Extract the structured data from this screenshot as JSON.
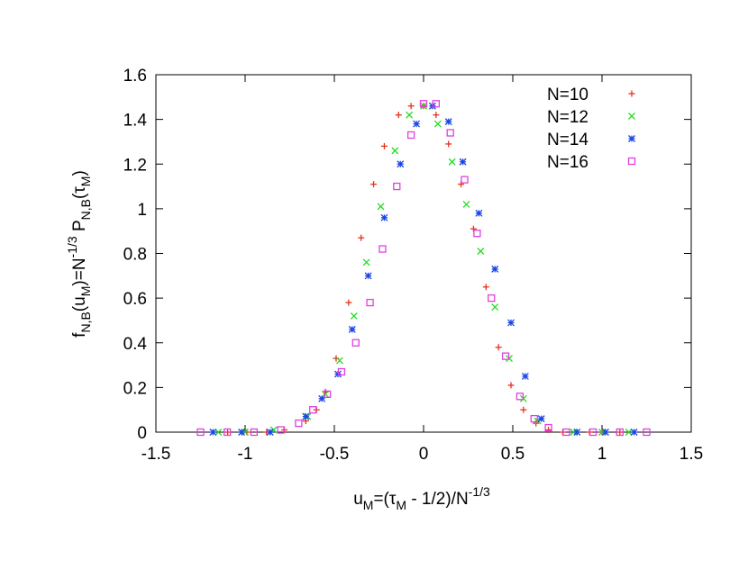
{
  "chart_data": {
    "type": "scatter",
    "xlabel": {
      "base": "u",
      "sub": "M",
      "rest": "=(τ",
      "sub2": "M",
      "rest2": " - 1/2)/N",
      "sup": "-1/3"
    },
    "ylabel": {
      "base": "f",
      "sub": "N,B",
      "p1": "(u",
      "sub2": "M",
      "p2": ")=N",
      "sup": "-1/3",
      "p3": " P",
      "sub3": "N,B",
      "p4": "(τ",
      "sub4": "M",
      "p5": ")"
    },
    "xlim": [
      -1.5,
      1.5
    ],
    "ylim": [
      0,
      1.6
    ],
    "xticks": [
      "-1.5",
      "-1",
      "-0.5",
      "0",
      "0.5",
      "1",
      "1.5"
    ],
    "yticks": [
      "0",
      "0.2",
      "0.4",
      "0.6",
      "0.8",
      "1",
      "1.2",
      "1.4",
      "1.6"
    ],
    "legend_position": "top-right",
    "grid": false,
    "series": [
      {
        "name": "N=10",
        "marker": "plus",
        "color": "#e8301c",
        "x": [
          -1.098,
          -0.99,
          -0.88,
          -0.78,
          -0.66,
          -0.6,
          -0.55,
          -0.49,
          -0.42,
          -0.35,
          -0.28,
          -0.22,
          -0.14,
          -0.07,
          0.0,
          0.07,
          0.14,
          0.21,
          0.28,
          0.35,
          0.42,
          0.49,
          0.56,
          0.63,
          0.7,
          0.78,
          0.86,
          0.93,
          1.0,
          1.1
        ],
        "y": [
          0.0,
          0.0,
          0.0,
          0.01,
          0.05,
          0.1,
          0.18,
          0.33,
          0.58,
          0.87,
          1.11,
          1.28,
          1.42,
          1.46,
          1.46,
          1.42,
          1.29,
          1.11,
          0.91,
          0.65,
          0.38,
          0.21,
          0.1,
          0.04,
          0.01,
          0.0,
          0.0,
          0.0,
          0.0,
          0.0
        ]
      },
      {
        "name": "N=12",
        "marker": "cross",
        "color": "#22dd22",
        "x": [
          -1.15,
          -1.0,
          -0.84,
          -0.65,
          -0.55,
          -0.47,
          -0.39,
          -0.32,
          -0.24,
          -0.16,
          -0.08,
          0.0,
          0.08,
          0.16,
          0.24,
          0.32,
          0.4,
          0.48,
          0.56,
          0.64,
          0.84,
          1.0,
          1.15
        ],
        "y": [
          0.0,
          0.0,
          0.01,
          0.07,
          0.17,
          0.32,
          0.52,
          0.76,
          1.01,
          1.26,
          1.42,
          1.46,
          1.38,
          1.21,
          1.02,
          0.81,
          0.56,
          0.33,
          0.15,
          0.05,
          0.0,
          0.0,
          0.0
        ]
      },
      {
        "name": "N=14",
        "marker": "star",
        "color": "#1a44e8",
        "x": [
          -1.18,
          -1.02,
          -0.86,
          -0.66,
          -0.57,
          -0.48,
          -0.4,
          -0.31,
          -0.22,
          -0.13,
          -0.04,
          0.05,
          0.14,
          0.22,
          0.31,
          0.4,
          0.49,
          0.57,
          0.66,
          0.86,
          1.02,
          1.18
        ],
        "y": [
          0.0,
          0.0,
          0.0,
          0.07,
          0.15,
          0.26,
          0.46,
          0.7,
          0.96,
          1.2,
          1.38,
          1.46,
          1.39,
          1.21,
          0.98,
          0.73,
          0.49,
          0.25,
          0.06,
          0.0,
          0.0,
          0.0
        ]
      },
      {
        "name": "N=16",
        "marker": "square",
        "color": "#e040e0",
        "x": [
          -1.25,
          -1.1,
          -0.95,
          -0.8,
          -0.7,
          -0.62,
          -0.54,
          -0.46,
          -0.38,
          -0.3,
          -0.23,
          -0.15,
          -0.07,
          0.0,
          0.07,
          0.15,
          0.23,
          0.3,
          0.38,
          0.46,
          0.54,
          0.62,
          0.7,
          0.8,
          0.95,
          1.1,
          1.25
        ],
        "y": [
          0.0,
          0.0,
          0.0,
          0.01,
          0.04,
          0.1,
          0.17,
          0.27,
          0.4,
          0.58,
          0.82,
          1.1,
          1.33,
          1.47,
          1.47,
          1.34,
          1.13,
          0.89,
          0.6,
          0.34,
          0.16,
          0.06,
          0.02,
          0.0,
          0.0,
          0.0,
          0.0
        ]
      }
    ]
  }
}
